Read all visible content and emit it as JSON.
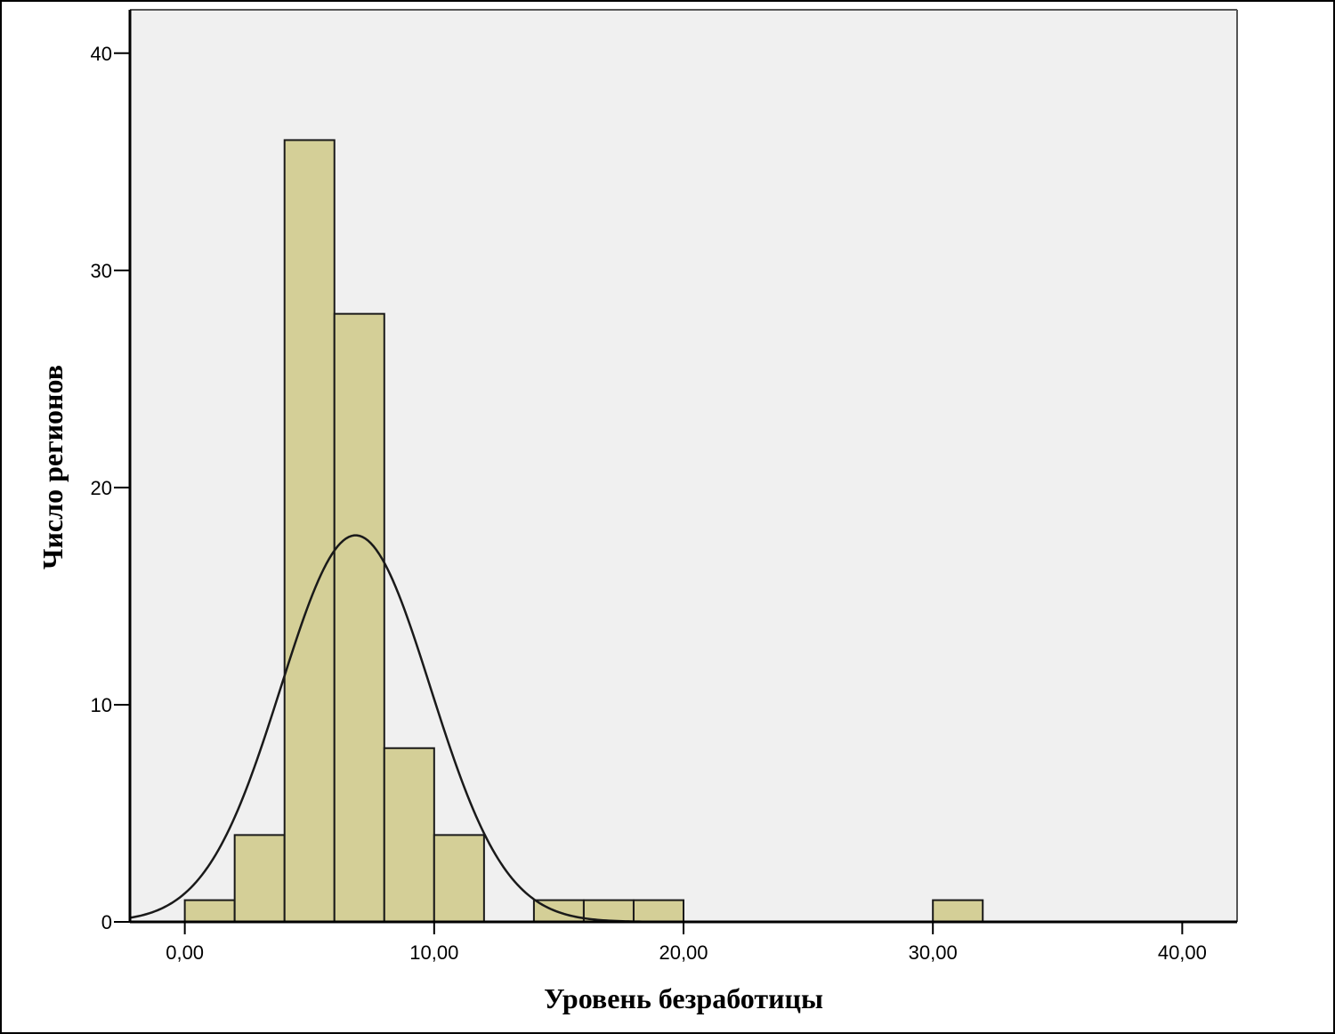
{
  "chart_data": {
    "type": "bar",
    "subtype": "histogram",
    "xlabel": "Уровень безработицы",
    "ylabel": "Число регионов",
    "xlim": [
      -2.2,
      42.2
    ],
    "ylim": [
      0,
      42
    ],
    "xticks": [
      0,
      10,
      20,
      30,
      40
    ],
    "xtick_labels": [
      "0,00",
      "10,00",
      "20,00",
      "30,00",
      "40,00"
    ],
    "yticks": [
      0,
      10,
      20,
      30,
      40
    ],
    "ytick_labels": [
      "0",
      "10",
      "20",
      "30",
      "40"
    ],
    "bin_width": 2,
    "bins": [
      {
        "start": 0,
        "end": 2,
        "count": 1
      },
      {
        "start": 2,
        "end": 4,
        "count": 4
      },
      {
        "start": 4,
        "end": 6,
        "count": 36
      },
      {
        "start": 6,
        "end": 8,
        "count": 28
      },
      {
        "start": 8,
        "end": 10,
        "count": 8
      },
      {
        "start": 10,
        "end": 12,
        "count": 4
      },
      {
        "start": 14,
        "end": 16,
        "count": 1
      },
      {
        "start": 16,
        "end": 18,
        "count": 1
      },
      {
        "start": 18,
        "end": 20,
        "count": 1
      },
      {
        "start": 30,
        "end": 32,
        "count": 1
      }
    ],
    "normal_curve": {
      "mean": 6.85,
      "sd": 3.0,
      "peak": 17.8
    },
    "grid": false,
    "colors": {
      "bar_fill": "#d4cf97",
      "bar_stroke": "#1a1a1a",
      "plot_background": "#f0f0f0",
      "curve": "#1a1a1a"
    }
  }
}
